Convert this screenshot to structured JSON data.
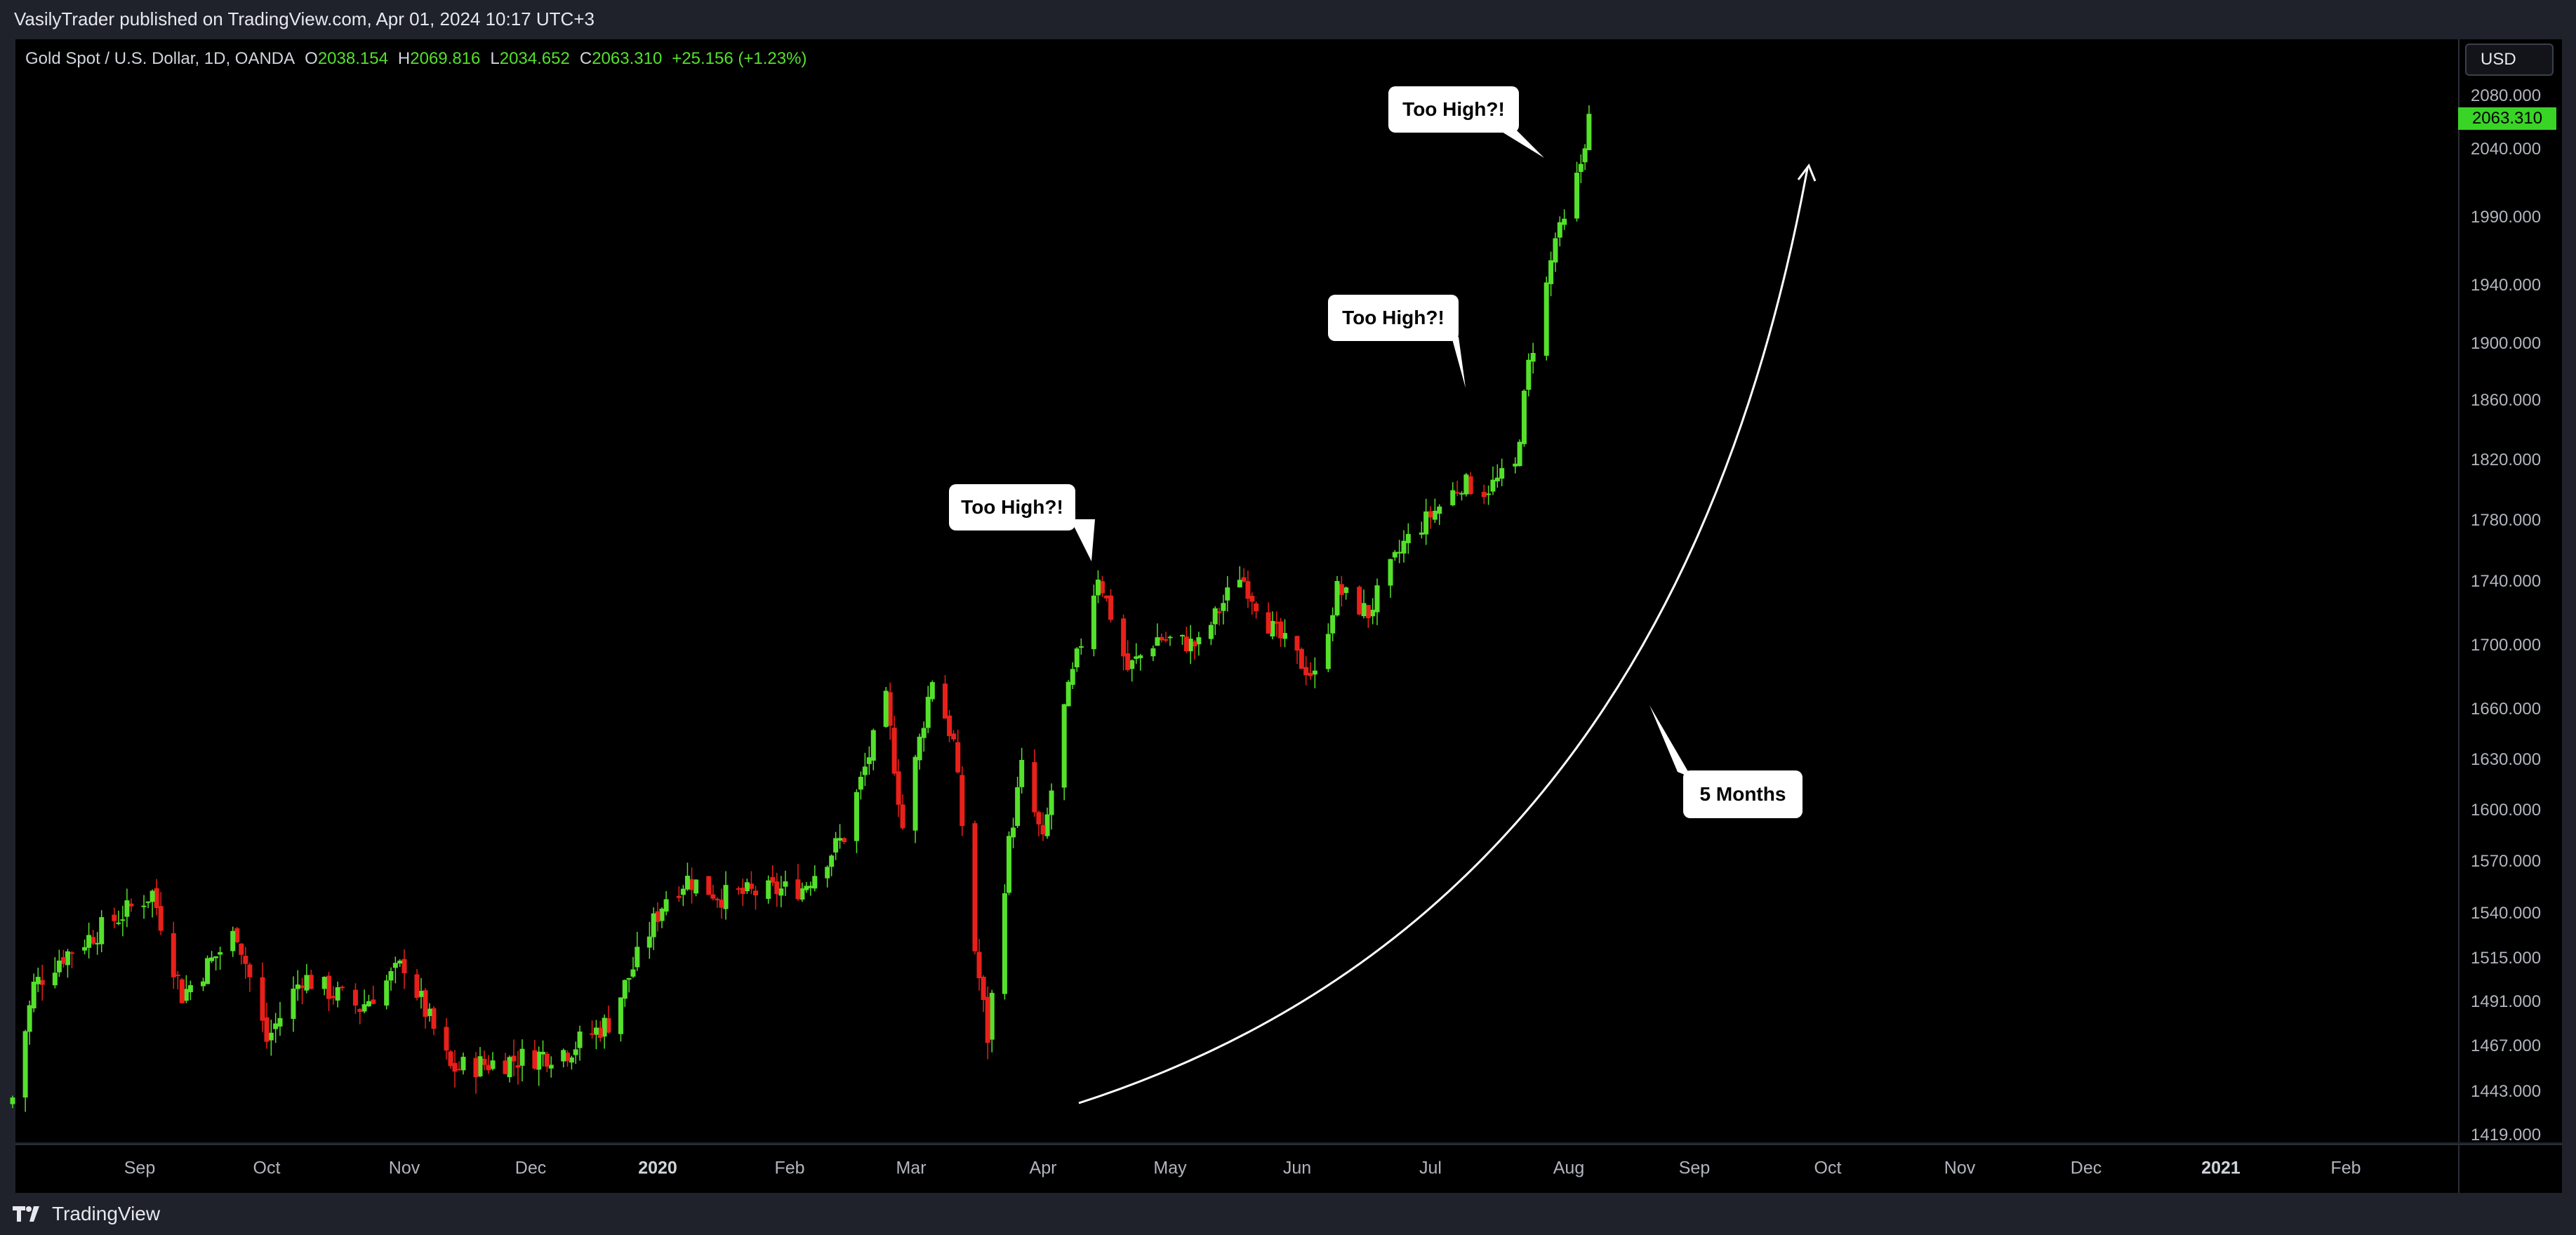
{
  "header": {
    "published": "VasilyTrader published on TradingView.com, Apr 01, 2024 10:17 UTC+3"
  },
  "legend": {
    "symbol": "Gold Spot / U.S. Dollar, 1D, OANDA",
    "o_label": "O",
    "o_value": "2038.154",
    "h_label": "H",
    "h_value": "2069.816",
    "l_label": "L",
    "l_value": "2034.652",
    "c_label": "C",
    "c_value": "2063.310",
    "change": "+25.156 (+1.23%)"
  },
  "currency": "USD",
  "current_price": "2063.310",
  "price_axis": [
    "2080.000",
    "2040.000",
    "1990.000",
    "1940.000",
    "1900.000",
    "1860.000",
    "1820.000",
    "1780.000",
    "1740.000",
    "1700.000",
    "1660.000",
    "1630.000",
    "1600.000",
    "1570.000",
    "1540.000",
    "1515.000",
    "1491.000",
    "1467.000",
    "1443.000",
    "1419.000"
  ],
  "time_axis": [
    "Sep",
    "Oct",
    "Nov",
    "Dec",
    "2020",
    "Feb",
    "Mar",
    "Apr",
    "May",
    "Jun",
    "Jul",
    "Aug",
    "Sep",
    "Oct",
    "Nov",
    "Dec",
    "2021",
    "Feb"
  ],
  "annotations": {
    "callout_1": "Too High?!",
    "callout_2": "Too High?!",
    "callout_3": "Too High?!",
    "months": "5 Months"
  },
  "footer": {
    "brand": "TradingView"
  },
  "colors": {
    "up": "#55e02c",
    "down": "#e8201a",
    "background": "#000000",
    "panel": "#1f222a"
  },
  "chart_data": {
    "type": "candlestick",
    "symbol": "Gold Spot / U.S. Dollar",
    "interval": "1D",
    "x_range": [
      "2019-08",
      "2021-02"
    ],
    "ylim": [
      1419,
      2080
    ],
    "close_path": [
      {
        "date": "2019-08-02",
        "close": 1440
      },
      {
        "date": "2019-08-07",
        "close": 1500
      },
      {
        "date": "2019-08-13",
        "close": 1515
      },
      {
        "date": "2019-08-28",
        "close": 1540
      },
      {
        "date": "2019-09-04",
        "close": 1552
      },
      {
        "date": "2019-09-11",
        "close": 1495
      },
      {
        "date": "2019-09-24",
        "close": 1530
      },
      {
        "date": "2019-10-01",
        "close": 1470
      },
      {
        "date": "2019-10-09",
        "close": 1505
      },
      {
        "date": "2019-10-22",
        "close": 1488
      },
      {
        "date": "2019-11-01",
        "close": 1512
      },
      {
        "date": "2019-11-12",
        "close": 1455
      },
      {
        "date": "2019-11-27",
        "close": 1460
      },
      {
        "date": "2019-12-10",
        "close": 1465
      },
      {
        "date": "2019-12-20",
        "close": 1480
      },
      {
        "date": "2020-01-03",
        "close": 1550
      },
      {
        "date": "2020-01-08",
        "close": 1560
      },
      {
        "date": "2020-01-16",
        "close": 1550
      },
      {
        "date": "2020-02-04",
        "close": 1555
      },
      {
        "date": "2020-02-14",
        "close": 1585
      },
      {
        "date": "2020-02-24",
        "close": 1665
      },
      {
        "date": "2020-02-28",
        "close": 1590
      },
      {
        "date": "2020-03-06",
        "close": 1680
      },
      {
        "date": "2020-03-11",
        "close": 1640
      },
      {
        "date": "2020-03-16",
        "close": 1520
      },
      {
        "date": "2020-03-19",
        "close": 1472
      },
      {
        "date": "2020-03-24",
        "close": 1580
      },
      {
        "date": "2020-03-27",
        "close": 1625
      },
      {
        "date": "2020-04-01",
        "close": 1580
      },
      {
        "date": "2020-04-06",
        "close": 1660
      },
      {
        "date": "2020-04-14",
        "close": 1745
      },
      {
        "date": "2020-04-21",
        "close": 1685
      },
      {
        "date": "2020-04-28",
        "close": 1705
      },
      {
        "date": "2020-05-08",
        "close": 1700
      },
      {
        "date": "2020-05-18",
        "close": 1745
      },
      {
        "date": "2020-05-26",
        "close": 1710
      },
      {
        "date": "2020-06-05",
        "close": 1680
      },
      {
        "date": "2020-06-10",
        "close": 1735
      },
      {
        "date": "2020-06-17",
        "close": 1720
      },
      {
        "date": "2020-06-25",
        "close": 1765
      },
      {
        "date": "2020-07-08",
        "close": 1805
      },
      {
        "date": "2020-07-13",
        "close": 1800
      },
      {
        "date": "2020-07-20",
        "close": 1815
      },
      {
        "date": "2020-07-23",
        "close": 1885
      },
      {
        "date": "2020-07-27",
        "close": 1940
      },
      {
        "date": "2020-07-29",
        "close": 1975
      },
      {
        "date": "2020-07-31",
        "close": 1985
      },
      {
        "date": "2020-08-04",
        "close": 2030
      },
      {
        "date": "2020-08-06",
        "close": 2063.31
      }
    ]
  }
}
